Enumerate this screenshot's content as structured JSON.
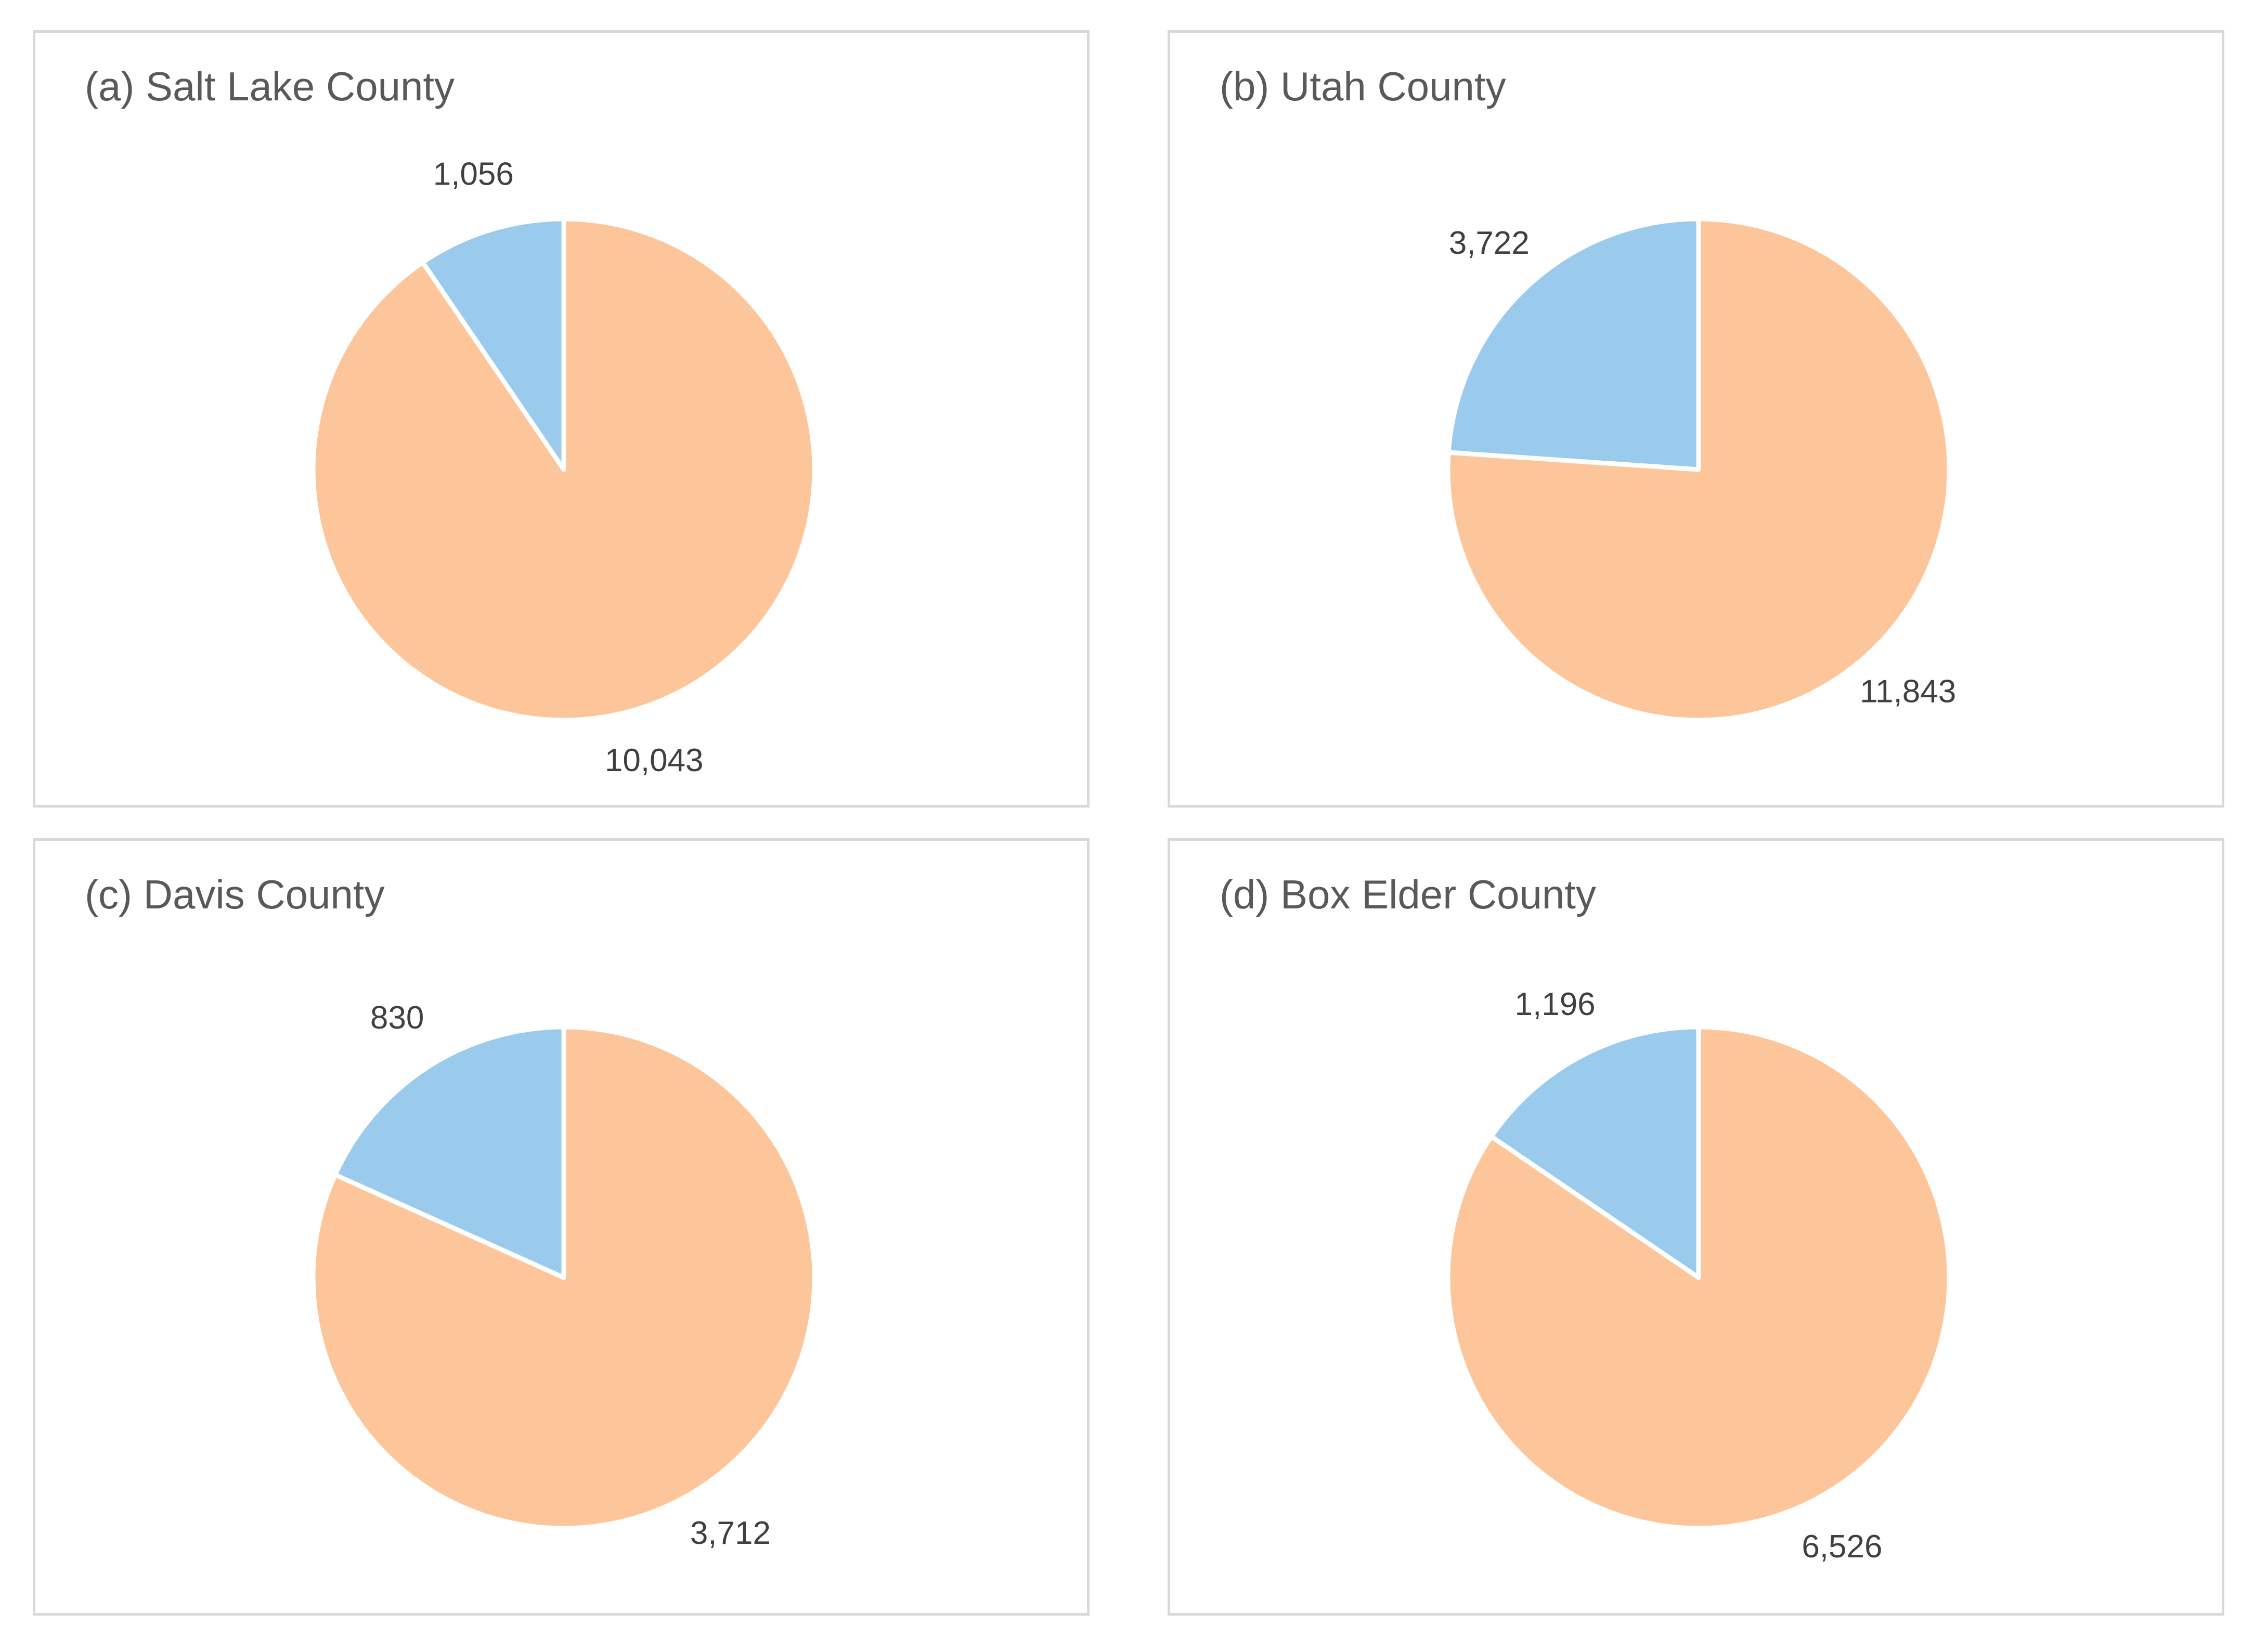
{
  "chart_data": [
    {
      "type": "pie",
      "title": "(a) Salt Lake County",
      "categories": [
        "",
        ""
      ],
      "values": [
        1056,
        10043
      ],
      "labels": [
        "1,056",
        "10,043"
      ],
      "colors": [
        "#9BCBEC",
        "#FDC59A"
      ],
      "start_angle_deg": 0,
      "direction": "counterclockwise",
      "legend": "none"
    },
    {
      "type": "pie",
      "title": "(b) Utah County",
      "categories": [
        "",
        ""
      ],
      "values": [
        3722,
        11843
      ],
      "labels": [
        "3,722",
        "11,843"
      ],
      "colors": [
        "#9BCBEC",
        "#FDC59A"
      ],
      "start_angle_deg": 0,
      "direction": "counterclockwise",
      "legend": "none"
    },
    {
      "type": "pie",
      "title": "(c) Davis County",
      "categories": [
        "",
        ""
      ],
      "values": [
        830,
        3712
      ],
      "labels": [
        "830",
        "3,712"
      ],
      "colors": [
        "#9BCBEC",
        "#FDC59A"
      ],
      "start_angle_deg": 0,
      "direction": "counterclockwise",
      "legend": "none"
    },
    {
      "type": "pie",
      "title": "(d) Box Elder County",
      "categories": [
        "",
        ""
      ],
      "values": [
        1196,
        6526
      ],
      "labels": [
        "1,196",
        "6,526"
      ],
      "colors": [
        "#9BCBEC",
        "#FDC59A"
      ],
      "start_angle_deg": 0,
      "direction": "counterclockwise",
      "legend": "none"
    }
  ]
}
